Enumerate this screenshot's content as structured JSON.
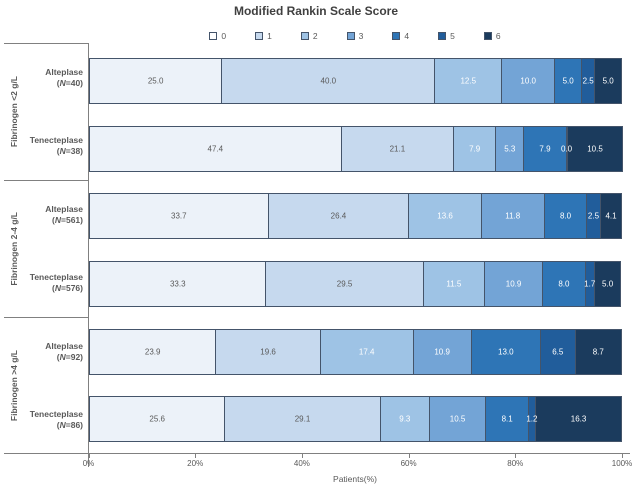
{
  "chart_data": {
    "type": "bar",
    "stacked": true,
    "orientation": "horizontal",
    "title": "Modified Rankin Scale Score",
    "xlabel": "Patients(%)",
    "xlim": [
      0,
      100
    ],
    "x_tick_labels": [
      "0%",
      "20%",
      "40%",
      "60%",
      "80%",
      "100%"
    ],
    "score_categories": [
      "0",
      "1",
      "2",
      "3",
      "4",
      "5",
      "6"
    ],
    "groups": [
      {
        "label": "Fibrinogen <2 g/L",
        "rows": [
          {
            "drug": "Alteplase",
            "n_label": "(N=40)",
            "values": [
              25.0,
              40.0,
              12.5,
              10.0,
              5.0,
              2.5,
              5.0
            ]
          },
          {
            "drug": "Tenecteplase",
            "n_label": "(N=38)",
            "values": [
              47.4,
              21.1,
              7.9,
              5.3,
              7.9,
              0.0,
              10.5
            ]
          }
        ]
      },
      {
        "label": "Fibrinogen 2-4 g/L",
        "rows": [
          {
            "drug": "Alteplase",
            "n_label": "(N=561)",
            "values": [
              33.7,
              26.4,
              13.6,
              11.8,
              8.0,
              2.5,
              4.1
            ]
          },
          {
            "drug": "Tenecteplase",
            "n_label": "(N=576)",
            "values": [
              33.3,
              29.5,
              11.5,
              10.9,
              8.0,
              1.7,
              5.0
            ]
          }
        ]
      },
      {
        "label": "Fibrinogen >4 g/L",
        "rows": [
          {
            "drug": "Alteplase",
            "n_label": "(N=92)",
            "values": [
              23.9,
              19.6,
              17.4,
              10.9,
              13.0,
              6.5,
              8.7
            ]
          },
          {
            "drug": "Tenecteplase",
            "n_label": "(N=86)",
            "values": [
              25.6,
              29.1,
              9.3,
              10.5,
              8.1,
              1.2,
              16.3
            ]
          }
        ]
      }
    ]
  },
  "colors": {
    "series": [
      "#ECF2F9",
      "#C6D9EE",
      "#9EC3E5",
      "#73A4D6",
      "#2E75B6",
      "#215D9B",
      "#1B3B5D"
    ],
    "legend_swatches": [
      "#FFFFFF",
      "#C6D9EE",
      "#9EC3E5",
      "#73A4D6",
      "#2E75B6",
      "#215D9B",
      "#1B3B5D"
    ],
    "segment_border": "#44546A",
    "axis_line": "#808080",
    "label_dark": "#595959",
    "label_light": "#FFFFFF",
    "title_color": "#404040"
  }
}
